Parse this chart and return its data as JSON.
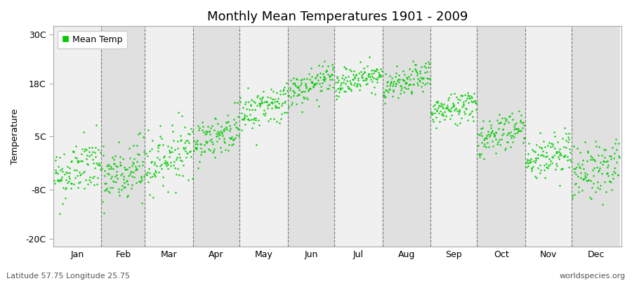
{
  "title": "Monthly Mean Temperatures 1901 - 2009",
  "ylabel": "Temperature",
  "yticks": [
    -20,
    -8,
    5,
    18,
    30
  ],
  "ytick_labels": [
    "-20C",
    "-8C",
    "5C",
    "18C",
    "30C"
  ],
  "ylim": [
    -22,
    32
  ],
  "dot_color": "#00cc00",
  "dot_size": 3,
  "bg_color_light": "#f0f0f0",
  "bg_color_dark": "#e0e0e0",
  "fig_bg": "#ffffff",
  "legend_label": "Mean Temp",
  "footer_left": "Latitude 57.75 Longitude 25.75",
  "footer_right": "worldspecies.org",
  "month_labels": [
    "Jan",
    "Feb",
    "Mar",
    "Apr",
    "May",
    "Jun",
    "Jul",
    "Aug",
    "Sep",
    "Oct",
    "Nov",
    "Dec"
  ],
  "month_days": [
    31,
    28,
    31,
    30,
    31,
    30,
    31,
    31,
    30,
    31,
    30,
    31
  ],
  "monthly_means_1901": [
    -5.0,
    -6.0,
    -2.0,
    3.5,
    10.5,
    15.5,
    17.5,
    16.5,
    10.5,
    4.5,
    -1.0,
    -4.5
  ],
  "monthly_means_2009": [
    -1.5,
    -2.5,
    2.5,
    7.0,
    14.0,
    19.5,
    21.0,
    20.0,
    13.5,
    7.5,
    1.5,
    -1.5
  ],
  "monthly_stds": [
    3.5,
    4.0,
    3.5,
    2.5,
    2.5,
    2.0,
    1.8,
    1.8,
    2.0,
    2.5,
    2.8,
    3.5
  ],
  "n_years": 109,
  "seed": 42
}
